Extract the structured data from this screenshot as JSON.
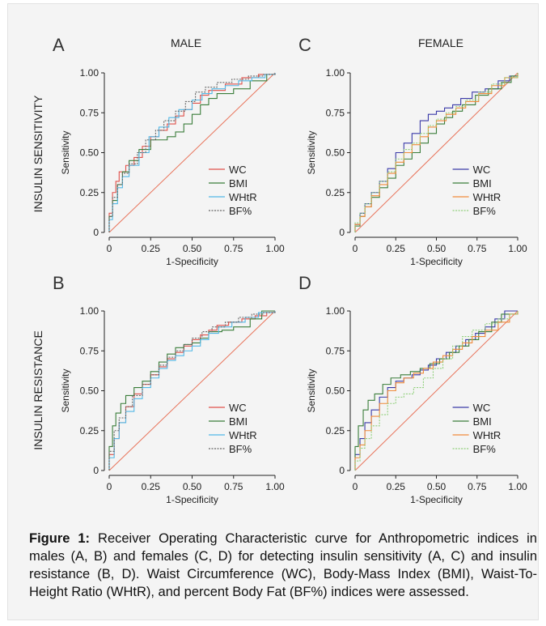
{
  "figure": {
    "row_labels": [
      "INSULIN SENSITIVITY",
      "INSULIN RESISTANCE"
    ],
    "column_labels": [
      "MALE",
      "FEMALE"
    ],
    "caption_label": "Figure 1:",
    "caption_text": " Receiver Operating Characteristic curve for Anthropometric indices in males (A, B) and females (C, D) for detecting insulin sensitivity (A, C) and insulin resistance (B, D). Waist Circumference (WC), Body-Mass Index (BMI), Waist-To-Height Ratio (WHtR), and percent Body Fat (BF%) indices were assessed."
  },
  "chart_data": [
    {
      "panel": "A",
      "type": "line",
      "xlabel": "1-Specificity",
      "ylabel": "Sensitivity",
      "xlim": [
        0,
        1
      ],
      "ylim": [
        0,
        1
      ],
      "xticks": [
        "0",
        "0.25",
        "0.50",
        "0.75",
        "1.00"
      ],
      "yticks": [
        "0",
        "0.25",
        "0.50",
        "0.75",
        "1.00"
      ],
      "legend_position": "bottom-right",
      "reference_line": {
        "x": [
          0,
          1
        ],
        "y": [
          0,
          1
        ],
        "color": "#e8735a"
      },
      "series": [
        {
          "name": "WC",
          "color": "#e0504a",
          "dashed": false,
          "x": [
            0,
            0,
            0.02,
            0.04,
            0.06,
            0.1,
            0.15,
            0.2,
            0.25,
            0.3,
            0.35,
            0.4,
            0.45,
            0.5,
            0.55,
            0.6,
            0.7,
            0.8,
            0.9,
            1.0
          ],
          "y": [
            0,
            0.12,
            0.25,
            0.32,
            0.38,
            0.42,
            0.47,
            0.54,
            0.6,
            0.64,
            0.68,
            0.73,
            0.77,
            0.81,
            0.86,
            0.89,
            0.93,
            0.97,
            0.99,
            1.0
          ]
        },
        {
          "name": "BMI",
          "color": "#3a7d3a",
          "dashed": false,
          "x": [
            0,
            0,
            0.02,
            0.05,
            0.08,
            0.12,
            0.18,
            0.25,
            0.3,
            0.35,
            0.4,
            0.45,
            0.5,
            0.55,
            0.6,
            0.65,
            0.75,
            0.85,
            0.95,
            1.0
          ],
          "y": [
            0,
            0.1,
            0.2,
            0.3,
            0.38,
            0.45,
            0.52,
            0.58,
            0.58,
            0.6,
            0.63,
            0.68,
            0.74,
            0.8,
            0.84,
            0.87,
            0.9,
            0.95,
            0.99,
            1.0
          ]
        },
        {
          "name": "WHtR",
          "color": "#52b8e6",
          "dashed": false,
          "x": [
            0,
            0,
            0.02,
            0.05,
            0.08,
            0.12,
            0.18,
            0.24,
            0.3,
            0.36,
            0.42,
            0.5,
            0.56,
            0.62,
            0.7,
            0.78,
            0.86,
            0.94,
            1.0
          ],
          "y": [
            0,
            0.08,
            0.18,
            0.28,
            0.35,
            0.42,
            0.5,
            0.6,
            0.66,
            0.72,
            0.77,
            0.83,
            0.87,
            0.9,
            0.92,
            0.95,
            0.97,
            0.99,
            1.0
          ]
        },
        {
          "name": "BF%",
          "color": "#666666",
          "dashed": true,
          "x": [
            0,
            0,
            0.02,
            0.05,
            0.08,
            0.12,
            0.17,
            0.22,
            0.28,
            0.33,
            0.4,
            0.46,
            0.52,
            0.58,
            0.65,
            0.74,
            0.84,
            0.93,
            1.0
          ],
          "y": [
            0,
            0.1,
            0.22,
            0.3,
            0.37,
            0.43,
            0.5,
            0.58,
            0.64,
            0.7,
            0.76,
            0.82,
            0.88,
            0.91,
            0.94,
            0.96,
            0.98,
            0.99,
            1.0
          ]
        }
      ]
    },
    {
      "panel": "B",
      "type": "line",
      "xlabel": "1-Specificity",
      "ylabel": "Sensitivity",
      "xlim": [
        0,
        1
      ],
      "ylim": [
        0,
        1
      ],
      "xticks": [
        "0",
        "0.25",
        "0.50",
        "0.75",
        "1.00"
      ],
      "yticks": [
        "0",
        "0.25",
        "0.50",
        "0.75",
        "1.00"
      ],
      "legend_position": "bottom-right",
      "reference_line": {
        "x": [
          0,
          1
        ],
        "y": [
          0,
          1
        ],
        "color": "#e8735a"
      },
      "series": [
        {
          "name": "WC",
          "color": "#e0504a",
          "dashed": false,
          "x": [
            0,
            0,
            0.03,
            0.06,
            0.1,
            0.15,
            0.2,
            0.25,
            0.3,
            0.35,
            0.4,
            0.45,
            0.5,
            0.55,
            0.6,
            0.65,
            0.72,
            0.8,
            0.88,
            0.95,
            1.0
          ],
          "y": [
            0,
            0.1,
            0.2,
            0.3,
            0.4,
            0.48,
            0.54,
            0.6,
            0.65,
            0.7,
            0.74,
            0.78,
            0.82,
            0.85,
            0.88,
            0.91,
            0.93,
            0.95,
            0.97,
            0.99,
            1.0
          ]
        },
        {
          "name": "BMI",
          "color": "#3a7d3a",
          "dashed": false,
          "x": [
            0,
            0,
            0.02,
            0.04,
            0.07,
            0.1,
            0.15,
            0.2,
            0.25,
            0.3,
            0.35,
            0.4,
            0.45,
            0.5,
            0.55,
            0.6,
            0.68,
            0.75,
            0.85,
            0.92,
            1.0
          ],
          "y": [
            0,
            0.15,
            0.28,
            0.36,
            0.42,
            0.47,
            0.52,
            0.56,
            0.62,
            0.68,
            0.73,
            0.77,
            0.79,
            0.8,
            0.83,
            0.87,
            0.88,
            0.9,
            0.95,
            1.0,
            1.0
          ]
        },
        {
          "name": "WHtR",
          "color": "#52b8e6",
          "dashed": false,
          "x": [
            0,
            0,
            0.03,
            0.06,
            0.1,
            0.15,
            0.2,
            0.25,
            0.3,
            0.35,
            0.4,
            0.45,
            0.5,
            0.55,
            0.6,
            0.66,
            0.74,
            0.82,
            0.9,
            1.0
          ],
          "y": [
            0,
            0.08,
            0.2,
            0.3,
            0.37,
            0.45,
            0.52,
            0.58,
            0.64,
            0.69,
            0.72,
            0.75,
            0.78,
            0.82,
            0.86,
            0.9,
            0.93,
            0.96,
            0.99,
            1.0
          ]
        },
        {
          "name": "BF%",
          "color": "#666666",
          "dashed": true,
          "x": [
            0,
            0,
            0.03,
            0.06,
            0.1,
            0.14,
            0.2,
            0.25,
            0.3,
            0.35,
            0.4,
            0.45,
            0.5,
            0.56,
            0.62,
            0.7,
            0.78,
            0.86,
            0.93,
            1.0
          ],
          "y": [
            0,
            0.12,
            0.25,
            0.33,
            0.4,
            0.47,
            0.54,
            0.6,
            0.66,
            0.71,
            0.75,
            0.79,
            0.83,
            0.87,
            0.9,
            0.93,
            0.96,
            0.98,
            0.99,
            1.0
          ]
        }
      ]
    },
    {
      "panel": "C",
      "type": "line",
      "xlabel": "1-Specificity",
      "ylabel": "Sensitivity",
      "xlim": [
        0,
        1
      ],
      "ylim": [
        0,
        1
      ],
      "xticks": [
        "0",
        "0.25",
        "0.50",
        "0.75",
        "1.00"
      ],
      "yticks": [
        "0",
        "0.25",
        "0.50",
        "0.75",
        "1.00"
      ],
      "legend_position": "bottom-right",
      "reference_line": {
        "x": [
          0,
          1
        ],
        "y": [
          0,
          1
        ],
        "color": "#e8735a"
      },
      "series": [
        {
          "name": "WC",
          "color": "#3a3aa8",
          "dashed": false,
          "x": [
            0,
            0,
            0.03,
            0.06,
            0.1,
            0.15,
            0.2,
            0.25,
            0.3,
            0.35,
            0.4,
            0.45,
            0.5,
            0.55,
            0.6,
            0.65,
            0.72,
            0.8,
            0.88,
            0.95,
            1.0
          ],
          "y": [
            0,
            0.05,
            0.12,
            0.18,
            0.25,
            0.32,
            0.4,
            0.5,
            0.56,
            0.62,
            0.7,
            0.74,
            0.76,
            0.78,
            0.8,
            0.84,
            0.88,
            0.9,
            0.95,
            0.98,
            1.0
          ]
        },
        {
          "name": "BMI",
          "color": "#3a7d3a",
          "dashed": false,
          "x": [
            0,
            0,
            0.03,
            0.06,
            0.1,
            0.15,
            0.2,
            0.25,
            0.3,
            0.35,
            0.4,
            0.45,
            0.5,
            0.55,
            0.6,
            0.66,
            0.74,
            0.82,
            0.9,
            0.96,
            1.0
          ],
          "y": [
            0,
            0.04,
            0.1,
            0.16,
            0.22,
            0.28,
            0.34,
            0.42,
            0.46,
            0.5,
            0.56,
            0.62,
            0.68,
            0.72,
            0.76,
            0.8,
            0.86,
            0.9,
            0.94,
            0.98,
            1.0
          ]
        },
        {
          "name": "WHtR",
          "color": "#f08a3a",
          "dashed": false,
          "x": [
            0,
            0,
            0.03,
            0.06,
            0.1,
            0.15,
            0.2,
            0.25,
            0.3,
            0.35,
            0.4,
            0.45,
            0.5,
            0.56,
            0.62,
            0.68,
            0.76,
            0.84,
            0.92,
            1.0
          ],
          "y": [
            0,
            0.05,
            0.1,
            0.16,
            0.23,
            0.3,
            0.37,
            0.44,
            0.5,
            0.55,
            0.6,
            0.66,
            0.7,
            0.74,
            0.78,
            0.82,
            0.87,
            0.92,
            0.97,
            1.0
          ]
        },
        {
          "name": "BF%",
          "color": "#8fcf7a",
          "dashed": true,
          "x": [
            0,
            0,
            0.03,
            0.06,
            0.1,
            0.15,
            0.2,
            0.25,
            0.3,
            0.35,
            0.4,
            0.45,
            0.5,
            0.56,
            0.62,
            0.68,
            0.76,
            0.84,
            0.92,
            1.0
          ],
          "y": [
            0,
            0.06,
            0.12,
            0.18,
            0.25,
            0.32,
            0.38,
            0.46,
            0.52,
            0.56,
            0.62,
            0.67,
            0.71,
            0.75,
            0.79,
            0.83,
            0.88,
            0.93,
            0.97,
            1.0
          ]
        }
      ]
    },
    {
      "panel": "D",
      "type": "line",
      "xlabel": "1-Specificity",
      "ylabel": "Sensitivity",
      "xlim": [
        0,
        1
      ],
      "ylim": [
        0,
        1
      ],
      "xticks": [
        "0",
        "0.25",
        "0.50",
        "0.75",
        "1.00"
      ],
      "yticks": [
        "0",
        "0.25",
        "0.50",
        "0.75",
        "1.00"
      ],
      "legend_position": "bottom-right",
      "reference_line": {
        "x": [
          0,
          1
        ],
        "y": [
          0,
          1
        ],
        "color": "#e8735a"
      },
      "series": [
        {
          "name": "WC",
          "color": "#3a3aa8",
          "dashed": false,
          "x": [
            0,
            0,
            0.03,
            0.06,
            0.1,
            0.15,
            0.2,
            0.25,
            0.3,
            0.35,
            0.4,
            0.45,
            0.5,
            0.56,
            0.62,
            0.68,
            0.74,
            0.8,
            0.86,
            0.92,
            1.0
          ],
          "y": [
            0,
            0.1,
            0.2,
            0.3,
            0.38,
            0.46,
            0.52,
            0.56,
            0.58,
            0.6,
            0.63,
            0.66,
            0.7,
            0.74,
            0.78,
            0.82,
            0.86,
            0.9,
            0.95,
            1.0,
            1.0
          ]
        },
        {
          "name": "BMI",
          "color": "#3a7d3a",
          "dashed": false,
          "x": [
            0,
            0,
            0.02,
            0.05,
            0.08,
            0.12,
            0.17,
            0.22,
            0.28,
            0.34,
            0.4,
            0.46,
            0.52,
            0.58,
            0.64,
            0.7,
            0.76,
            0.84,
            0.9,
            1.0
          ],
          "y": [
            0,
            0.15,
            0.28,
            0.38,
            0.44,
            0.48,
            0.54,
            0.58,
            0.6,
            0.62,
            0.64,
            0.67,
            0.7,
            0.74,
            0.78,
            0.82,
            0.87,
            0.93,
            0.98,
            1.0
          ]
        },
        {
          "name": "WHtR",
          "color": "#f08a3a",
          "dashed": false,
          "x": [
            0,
            0,
            0.03,
            0.06,
            0.1,
            0.15,
            0.2,
            0.25,
            0.3,
            0.36,
            0.42,
            0.48,
            0.54,
            0.6,
            0.66,
            0.72,
            0.8,
            0.88,
            0.95,
            1.0
          ],
          "y": [
            0,
            0.08,
            0.16,
            0.25,
            0.34,
            0.42,
            0.5,
            0.55,
            0.58,
            0.61,
            0.64,
            0.68,
            0.72,
            0.76,
            0.8,
            0.84,
            0.88,
            0.93,
            0.98,
            1.0
          ]
        },
        {
          "name": "BF%",
          "color": "#8fcf7a",
          "dashed": true,
          "x": [
            0,
            0,
            0.03,
            0.06,
            0.1,
            0.15,
            0.2,
            0.25,
            0.3,
            0.36,
            0.42,
            0.48,
            0.54,
            0.6,
            0.66,
            0.72,
            0.8,
            0.88,
            0.95,
            1.0
          ],
          "y": [
            0,
            0.06,
            0.14,
            0.2,
            0.28,
            0.35,
            0.42,
            0.46,
            0.48,
            0.52,
            0.58,
            0.64,
            0.7,
            0.78,
            0.84,
            0.88,
            0.92,
            0.95,
            0.98,
            1.0
          ]
        }
      ]
    }
  ]
}
